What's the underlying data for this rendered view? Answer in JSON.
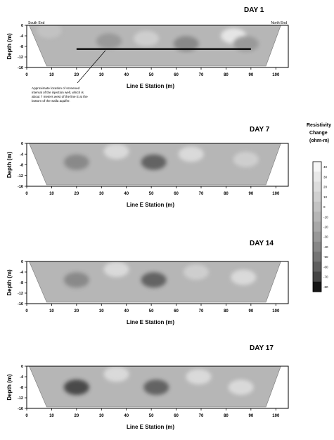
{
  "figure": {
    "colorbar": {
      "title_lines": [
        "Resistivity",
        "Change",
        "(ohm-m)"
      ],
      "tick_labels": [
        "40",
        "30",
        "20",
        "10",
        "0",
        "-10",
        "-20",
        "-30",
        "-40",
        "-50",
        "-60",
        "-70",
        "-80"
      ],
      "colors": [
        "#f6f6f6",
        "#e8e8e8",
        "#dcdcdc",
        "#d0d0d0",
        "#c3c3c3",
        "#b6b6b6",
        "#a8a8a8",
        "#989898",
        "#878787",
        "#757575",
        "#5f5f5f",
        "#454545",
        "#151515"
      ]
    }
  },
  "chart_data": [
    {
      "type": "heatmap",
      "title": "DAY 1",
      "xlabel": "Line E Station (m)",
      "ylabel": "Depth (m)",
      "xlim": [
        0,
        105
      ],
      "ylim": [
        0,
        -16
      ],
      "xticks": [
        "0",
        "10",
        "20",
        "30",
        "40",
        "50",
        "60",
        "70",
        "80",
        "90",
        "100"
      ],
      "yticks": [
        "0",
        "-4",
        "-8",
        "-12",
        "-16"
      ],
      "corner_labels": {
        "left": "South End",
        "right": "North End"
      },
      "annotation": "Approximate location of screened interval of the injection well, which is about 7 meters west of the line E at the bottom of the Salla aquifer.",
      "injection_line": {
        "x1": 20,
        "x2": 90,
        "depth": -9
      },
      "anomalies": [
        {
          "x": 9,
          "depth": -2,
          "level": 4
        },
        {
          "x": 33,
          "depth": -6,
          "level": 7
        },
        {
          "x": 48,
          "depth": -5,
          "level": 3
        },
        {
          "x": 64,
          "depth": -7,
          "level": 8
        },
        {
          "x": 83,
          "depth": -4,
          "level": 1
        },
        {
          "x": 88,
          "depth": -7,
          "level": 7
        }
      ]
    },
    {
      "type": "heatmap",
      "title": "DAY 7",
      "xlabel": "Line E Station (m)",
      "ylabel": "Depth (m)",
      "xlim": [
        0,
        105
      ],
      "ylim": [
        0,
        -16
      ],
      "xticks": [
        "0",
        "10",
        "20",
        "30",
        "40",
        "50",
        "60",
        "70",
        "80",
        "90",
        "100"
      ],
      "yticks": [
        "0",
        "-4",
        "-8",
        "-12",
        "-16"
      ],
      "anomalies": [
        {
          "x": 20,
          "depth": -7,
          "level": 8
        },
        {
          "x": 36,
          "depth": -3,
          "level": 2
        },
        {
          "x": 51,
          "depth": -7,
          "level": 10
        },
        {
          "x": 66,
          "depth": -4,
          "level": 2
        },
        {
          "x": 88,
          "depth": -6,
          "level": 3
        }
      ]
    },
    {
      "type": "heatmap",
      "title": "DAY 14",
      "xlabel": "Line E Station (m)",
      "ylabel": "Depth (m)",
      "xlim": [
        0,
        105
      ],
      "ylim": [
        0,
        -16
      ],
      "xticks": [
        "0",
        "10",
        "20",
        "30",
        "40",
        "50",
        "60",
        "70",
        "80",
        "90",
        "100"
      ],
      "yticks": [
        "0",
        "-4",
        "-8",
        "-12",
        "-16"
      ],
      "anomalies": [
        {
          "x": 20,
          "depth": -7,
          "level": 8
        },
        {
          "x": 36,
          "depth": -3,
          "level": 2
        },
        {
          "x": 51,
          "depth": -7,
          "level": 10
        },
        {
          "x": 68,
          "depth": -4,
          "level": 3
        },
        {
          "x": 87,
          "depth": -6,
          "level": 2
        }
      ]
    },
    {
      "type": "heatmap",
      "title": "DAY 17",
      "xlabel": "Line E Station (m)",
      "ylabel": "Depth (m)",
      "xlim": [
        0,
        105
      ],
      "ylim": [
        0,
        -16
      ],
      "xticks": [
        "0",
        "10",
        "20",
        "30",
        "40",
        "50",
        "60",
        "70",
        "80",
        "90",
        "100"
      ],
      "yticks": [
        "0",
        "-4",
        "-8",
        "-12",
        "-16"
      ],
      "anomalies": [
        {
          "x": 20,
          "depth": -8,
          "level": 11
        },
        {
          "x": 36,
          "depth": -3,
          "level": 2
        },
        {
          "x": 52,
          "depth": -8,
          "level": 10
        },
        {
          "x": 69,
          "depth": -4,
          "level": 2
        },
        {
          "x": 86,
          "depth": -8,
          "level": 2
        }
      ]
    }
  ]
}
